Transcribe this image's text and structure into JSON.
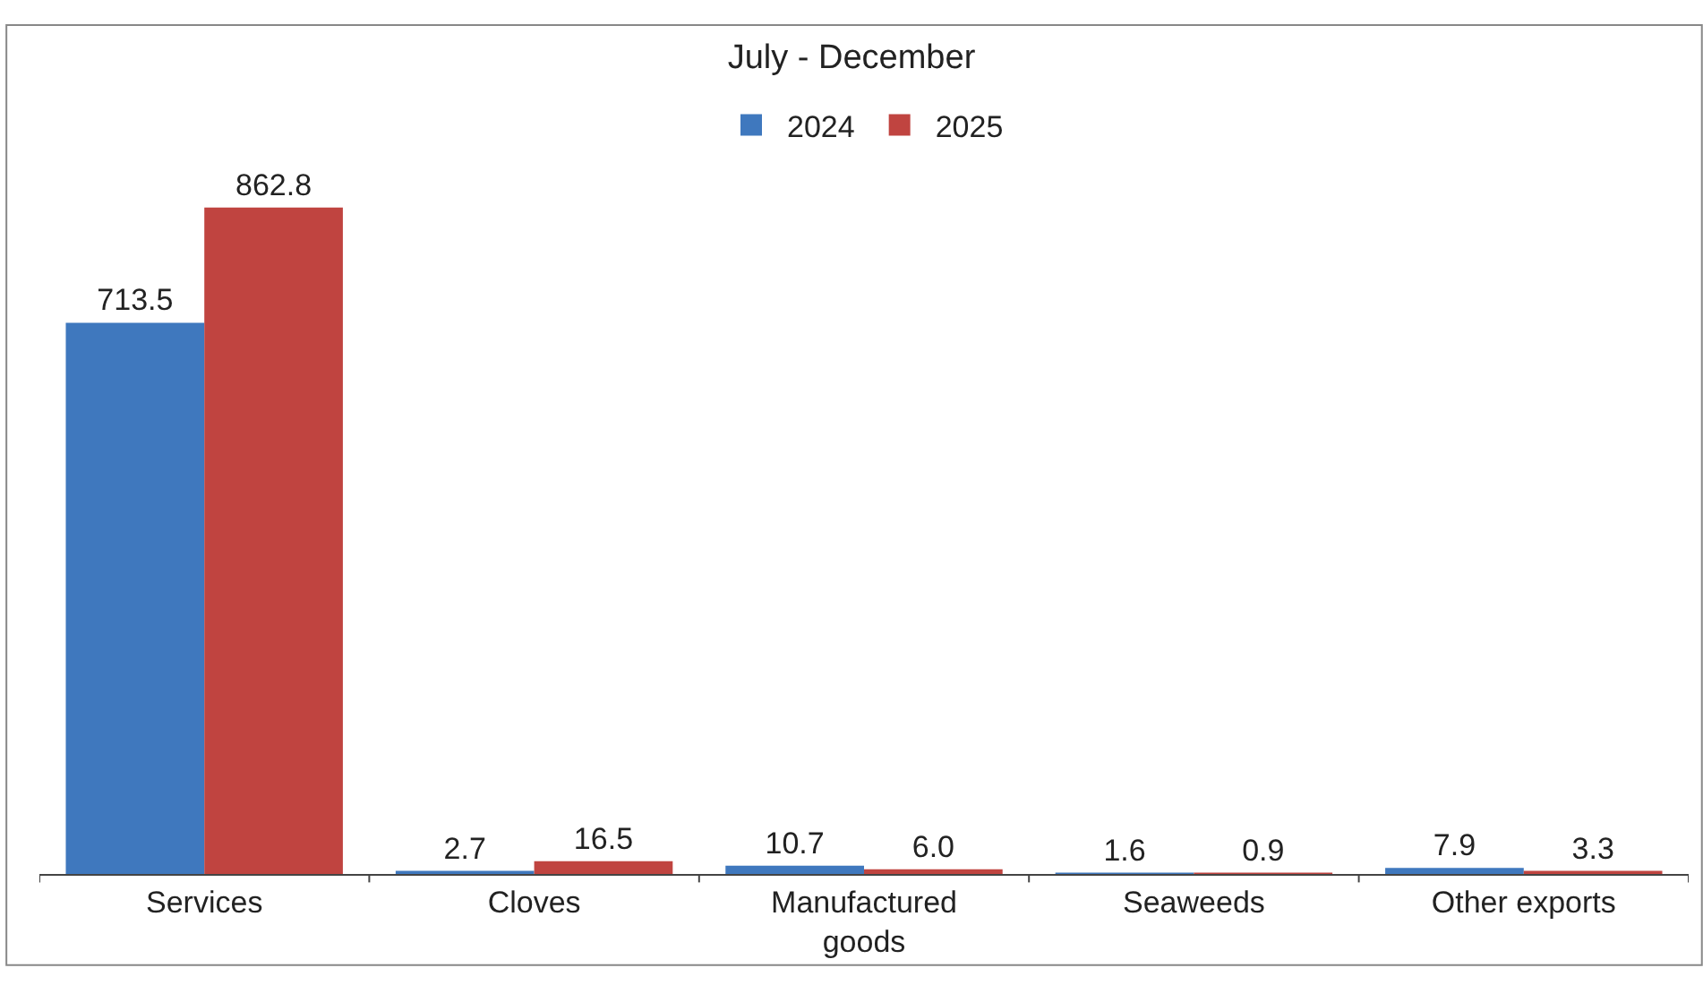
{
  "chart_data": {
    "type": "bar",
    "title": "July - December",
    "categories": [
      "Services",
      "Cloves",
      "Manufactured\ngoods",
      "Seaweeds",
      "Other exports"
    ],
    "series": [
      {
        "name": "2024",
        "color": "#3f78be",
        "values": [
          713.5,
          2.7,
          10.7,
          1.6,
          7.9
        ],
        "value_labels": [
          "713.5",
          "2.7",
          "10.7",
          "1.6",
          "7.9"
        ]
      },
      {
        "name": "2025",
        "color": "#c04440",
        "values": [
          862.8,
          16.5,
          6.0,
          0.9,
          3.3
        ],
        "value_labels": [
          "862.8",
          "16.5",
          "6.0",
          "0.9",
          "3.3"
        ]
      }
    ],
    "legend": "top"
  }
}
